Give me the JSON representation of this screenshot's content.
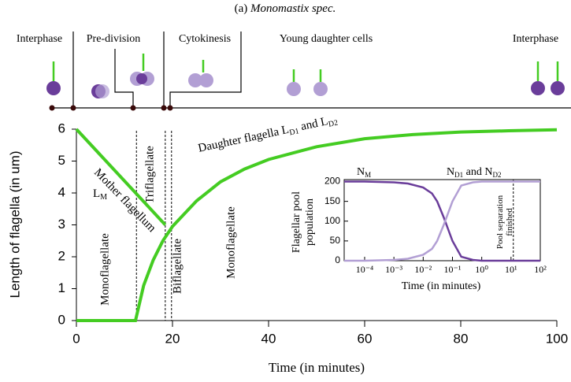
{
  "title": {
    "prefix": "(a)",
    "species": "Monomastix spec."
  },
  "phases": [
    "Interphase",
    "Pre-division",
    "Cytokinesis",
    "Young daughter cells",
    "Interphase"
  ],
  "chart_data": [
    {
      "type": "line",
      "x_label": "Time (in minutes)",
      "y_label": "Length of flagella (in um)",
      "xlim": [
        0,
        100
      ],
      "ylim": [
        0,
        6
      ],
      "xticks": [
        0,
        20,
        40,
        60,
        80,
        100
      ],
      "yticks": [
        0,
        1,
        2,
        3,
        4,
        5,
        6
      ],
      "grid": false,
      "dividers": [
        12.5,
        18.5,
        19.8
      ],
      "annotations": {
        "mother": "Mother flagellum",
        "lm": [
          "L",
          "M"
        ],
        "mono1": "Monoflagellate",
        "tri": "Triflagellate",
        "bi": "Biflagellate",
        "mono2": "Monoflagellate",
        "daughter": [
          "Daughter flagella L",
          "D1",
          " and L",
          "D2"
        ]
      },
      "series": [
        {
          "name": "Mother flagellum",
          "color": "#44cc22",
          "x": [
            0,
            18.5
          ],
          "values": [
            6,
            3
          ]
        },
        {
          "name": "Daughter flagella",
          "color": "#44cc22",
          "x": [
            0,
            12.3,
            14,
            16,
            18,
            20,
            25,
            30,
            35,
            40,
            50,
            60,
            70,
            80,
            90,
            100
          ],
          "values": [
            0,
            0,
            1.1,
            1.9,
            2.5,
            2.95,
            3.75,
            4.35,
            4.75,
            5.05,
            5.45,
            5.7,
            5.83,
            5.91,
            5.95,
            5.98
          ]
        }
      ]
    },
    {
      "type": "line",
      "x_label": "Time (in minutes)",
      "y_label": [
        "Flagellar pool",
        "population"
      ],
      "log_x": true,
      "xlim": [
        2e-05,
        100
      ],
      "ylim": [
        0,
        205
      ],
      "xticks": [
        {
          "value": 0.0001,
          "label": "10⁻⁴"
        },
        {
          "value": 0.001,
          "label": "10⁻³"
        },
        {
          "value": 0.01,
          "label": "10⁻²"
        },
        {
          "value": 0.1,
          "label": "10⁻¹"
        },
        {
          "value": 1,
          "label": "10⁰"
        },
        {
          "value": 10,
          "label": "10¹"
        },
        {
          "value": 100,
          "label": "10²"
        }
      ],
      "yticks": [
        0,
        50,
        100,
        150,
        200
      ],
      "divider": 12,
      "annotations": {
        "nm": [
          "N",
          "M"
        ],
        "nd": [
          "N",
          "D1",
          " and  N",
          "D2"
        ],
        "pool": [
          "Pool separation",
          "finished"
        ]
      },
      "series": [
        {
          "name": "NM",
          "color": "#6a3d9a",
          "x": [
            2e-05,
            0.0001,
            0.001,
            0.003,
            0.01,
            0.02,
            0.03,
            0.05,
            0.1,
            0.2,
            0.5,
            1,
            10,
            100
          ],
          "values": [
            200,
            200,
            198,
            195,
            185,
            170,
            150,
            110,
            50,
            10,
            2,
            0,
            0,
            0
          ]
        },
        {
          "name": "ND",
          "color": "#b29fd4",
          "x": [
            2e-05,
            0.0001,
            0.001,
            0.003,
            0.01,
            0.02,
            0.03,
            0.05,
            0.1,
            0.2,
            0.5,
            1,
            10,
            100
          ],
          "values": [
            0,
            0,
            2,
            5,
            15,
            30,
            50,
            90,
            150,
            190,
            198,
            200,
            200,
            200
          ]
        }
      ]
    }
  ]
}
